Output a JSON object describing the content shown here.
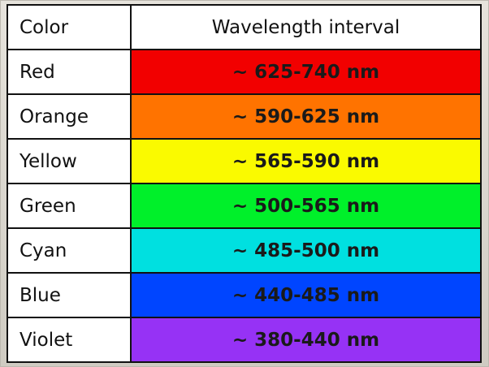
{
  "table": {
    "header": [
      "Color",
      "Wavelength interval"
    ],
    "rows": [
      [
        "Red",
        "~ 625-740 nm"
      ],
      [
        "Orange",
        "~ 590-625 nm"
      ],
      [
        "Yellow",
        "~ 565-590 nm"
      ],
      [
        "Green",
        "~ 500-565 nm"
      ],
      [
        "Cyan",
        "~ 485-500 nm"
      ],
      [
        "Blue",
        "~ 440-485 nm"
      ],
      [
        "Violet",
        "~ 380-440 nm"
      ]
    ],
    "row_colors": [
      "#f20000",
      "#ff7300",
      "#fafa00",
      "#00f02a",
      "#00e0e0",
      "#0045ff",
      "#9632f5"
    ]
  }
}
